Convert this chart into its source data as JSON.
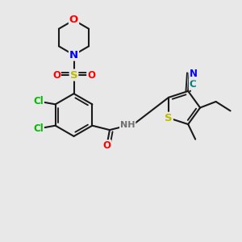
{
  "bg_color": "#e8e8e8",
  "bond_color": "#1a1a1a",
  "bond_width": 1.5,
  "atom_colors": {
    "O": "#ff0000",
    "N": "#0000ff",
    "S": "#bbbb00",
    "Cl": "#00bb00",
    "C_cyan": "#008080",
    "H": "#707070"
  },
  "font_size": 8.5
}
